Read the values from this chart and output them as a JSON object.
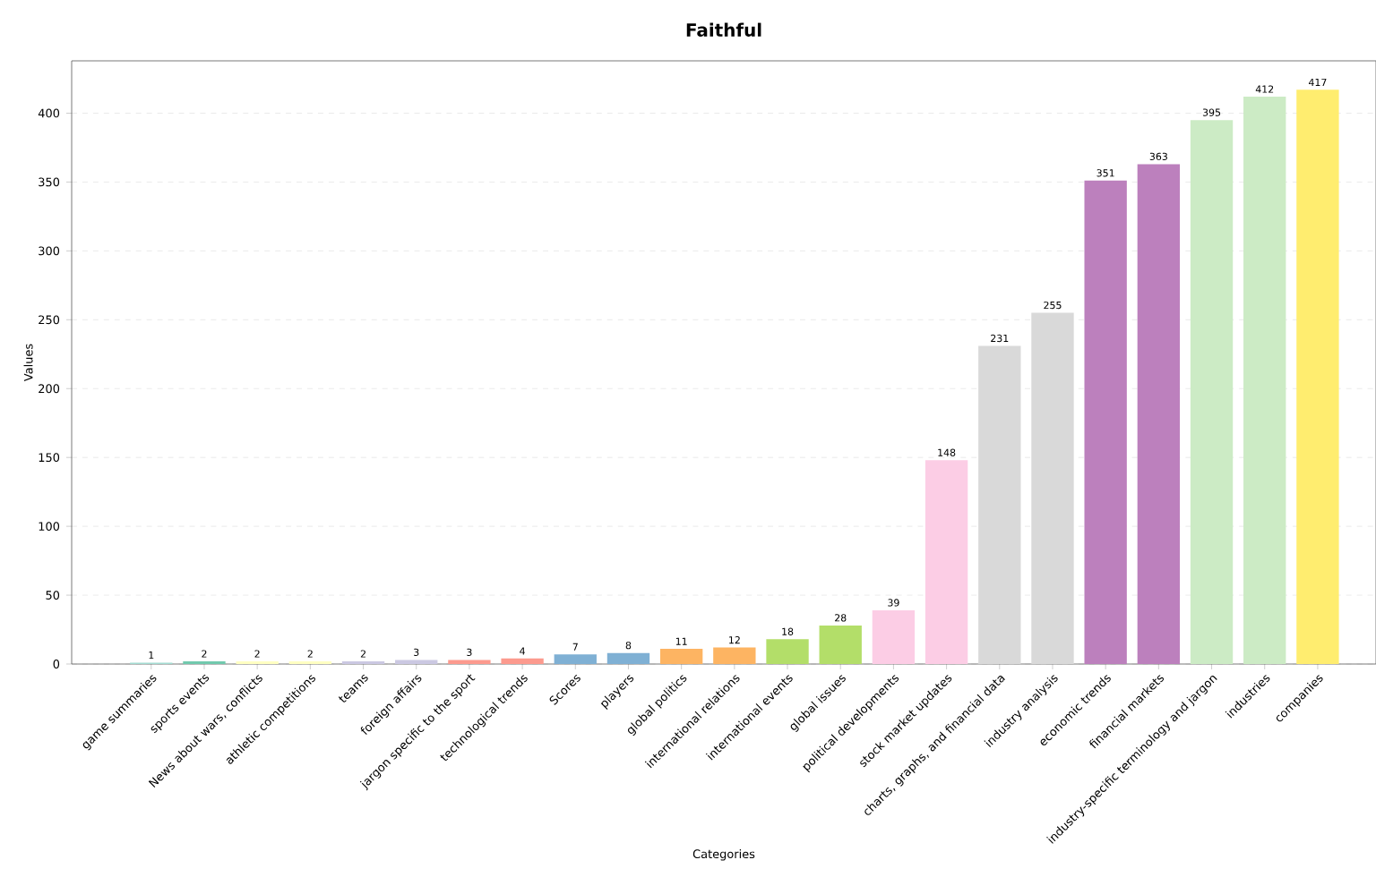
{
  "chart_data": {
    "type": "bar",
    "title": "Faithful",
    "xlabel": "Categories",
    "ylabel": "Values",
    "categories": [
      "game summaries",
      "sports events",
      "News about wars, conflicts",
      "athletic competitions",
      "teams",
      "foreign affairs",
      "jargon specific to the sport",
      "technological trends",
      "Scores",
      "players",
      "global politics",
      "international relations",
      "international events",
      "global issues",
      "political developments",
      "stock market updates",
      "charts, graphs, and financial data",
      "industry analysis",
      "economic trends",
      "financial markets",
      "industry-specific terminology and jargon",
      "industries",
      "companies"
    ],
    "values": [
      1,
      2,
      2,
      2,
      2,
      3,
      3,
      4,
      7,
      8,
      11,
      12,
      18,
      28,
      39,
      148,
      231,
      255,
      351,
      363,
      395,
      412,
      417
    ],
    "colors": [
      "#a4dcd2",
      "#71c9ad",
      "#ffffc2",
      "#ffffc2",
      "#cbc8e2",
      "#cbc8e2",
      "#fc9a8e",
      "#fc9a8e",
      "#7fb0d4",
      "#7fb0d4",
      "#fdb462",
      "#fdb462",
      "#b3de69",
      "#b3de69",
      "#fccde5",
      "#fccde5",
      "#d9d9d9",
      "#d9d9d9",
      "#bc80bd",
      "#bc80bd",
      "#ccebc5",
      "#ccebc5",
      "#ffed6f"
    ],
    "ylim": [
      0,
      438
    ],
    "yticks": [
      0,
      50,
      100,
      150,
      200,
      250,
      300,
      350,
      400
    ],
    "grid": "y",
    "data_labels": true
  }
}
